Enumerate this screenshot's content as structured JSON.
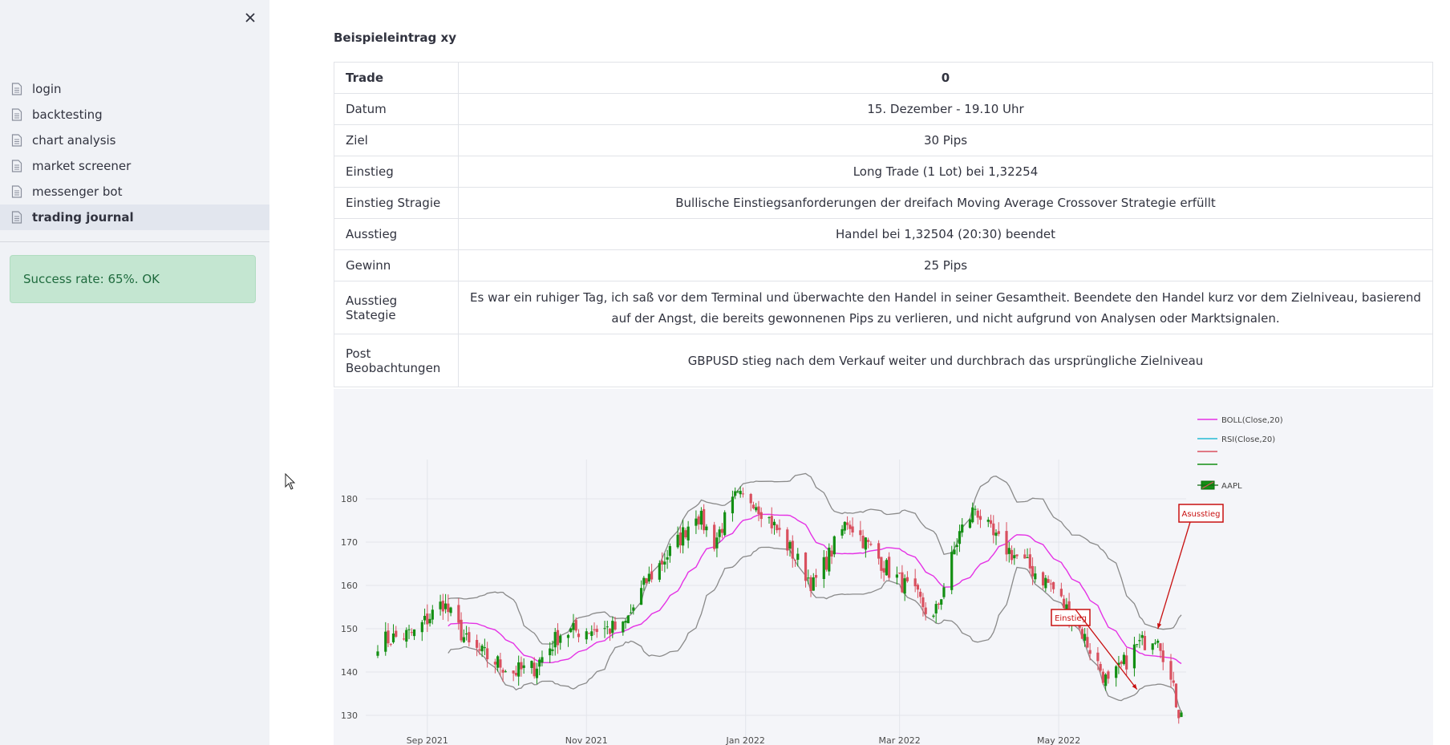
{
  "sidebar": {
    "items": [
      {
        "label": "login",
        "active": false
      },
      {
        "label": "backtesting",
        "active": false
      },
      {
        "label": "chart analysis",
        "active": false
      },
      {
        "label": "market screener",
        "active": false
      },
      {
        "label": "messenger bot",
        "active": false
      },
      {
        "label": "trading journal",
        "active": true
      }
    ],
    "success_message": "Success rate: 65%. OK"
  },
  "main": {
    "entry_title": "Beispieleintrag xy",
    "table": {
      "header": {
        "key": "Trade",
        "value": "0"
      },
      "rows": [
        {
          "key": "Datum",
          "value": "15. Dezember - 19.10 Uhr"
        },
        {
          "key": "Ziel",
          "value": "30 Pips"
        },
        {
          "key": "Einstieg",
          "value": "Long Trade (1 Lot) bei 1,32254"
        },
        {
          "key": "Einstieg Stragie",
          "value": "Bullische Einstiegsanforderungen der dreifach Moving Average Crossover Strategie erfüllt"
        },
        {
          "key": "Ausstieg",
          "value": "Handel bei 1,32504 (20:30) beendet"
        },
        {
          "key": "Gewinn",
          "value": "25 Pips"
        },
        {
          "key": "Ausstieg Stategie",
          "value": "Es war ein ruhiger Tag, ich saß vor dem Terminal und überwachte den Handel in seiner Gesamtheit. Beendete den Handel kurz vor dem Zielniveau, basierend auf der Angst, die bereits gewonnenen Pips zu verlieren, und nicht aufgrund von Analysen oder Marktsignalen."
        },
        {
          "key": "Post Beobachtungen",
          "value": "GBPUSD stieg nach dem Verkauf weiter und durchbrach das ursprüngliche Zielniveau"
        }
      ]
    }
  },
  "chart_data": {
    "type": "candlestick",
    "x_ticks": [
      "Sep 2021",
      "Nov 2021",
      "Jan 2022",
      "Mar 2022",
      "May 2022"
    ],
    "y_ticks": [
      130,
      140,
      150,
      160,
      170,
      180
    ],
    "ylim": [
      127,
      189
    ],
    "legend": [
      "BOLL(Close,20)",
      "RSI(Close,20)",
      "",
      "",
      "AAPL"
    ],
    "legend_placement": "top-right",
    "annotations": [
      {
        "text": "Asusstieg",
        "at_date": "2022-06-08",
        "at_price": 150
      },
      {
        "text": "Einstieg",
        "at_date": "2022-05-31",
        "at_price": 136
      }
    ],
    "colors": {
      "up": "#138f13",
      "down": "#d9505f",
      "ma": "#e532e5",
      "bands": "#8a8a8a",
      "rsi": "#26bcd4",
      "annotation": "#c81010"
    },
    "close_anchors": [
      {
        "date": "2021-08-13",
        "close": 147
      },
      {
        "date": "2021-08-27",
        "close": 149
      },
      {
        "date": "2021-09-07",
        "close": 156
      },
      {
        "date": "2021-09-17",
        "close": 146
      },
      {
        "date": "2021-10-04",
        "close": 140
      },
      {
        "date": "2021-10-12",
        "close": 141
      },
      {
        "date": "2021-10-22",
        "close": 149
      },
      {
        "date": "2021-11-03",
        "close": 150
      },
      {
        "date": "2021-11-15",
        "close": 150
      },
      {
        "date": "2021-11-24",
        "close": 161
      },
      {
        "date": "2021-12-06",
        "close": 170
      },
      {
        "date": "2021-12-13",
        "close": 177
      },
      {
        "date": "2021-12-20",
        "close": 170
      },
      {
        "date": "2021-12-28",
        "close": 180
      },
      {
        "date": "2022-01-04",
        "close": 180
      },
      {
        "date": "2022-01-14",
        "close": 172
      },
      {
        "date": "2022-01-27",
        "close": 160
      },
      {
        "date": "2022-02-09",
        "close": 175
      },
      {
        "date": "2022-02-24",
        "close": 164
      },
      {
        "date": "2022-03-08",
        "close": 157
      },
      {
        "date": "2022-03-14",
        "close": 152
      },
      {
        "date": "2022-03-24",
        "close": 172
      },
      {
        "date": "2022-03-30",
        "close": 178
      },
      {
        "date": "2022-04-06",
        "close": 171
      },
      {
        "date": "2022-04-18",
        "close": 165
      },
      {
        "date": "2022-04-28",
        "close": 160
      },
      {
        "date": "2022-05-10",
        "close": 149
      },
      {
        "date": "2022-05-20",
        "close": 137
      },
      {
        "date": "2022-05-31",
        "close": 146
      },
      {
        "date": "2022-06-08",
        "close": 149
      },
      {
        "date": "2022-06-16",
        "close": 131
      },
      {
        "date": "2022-06-17",
        "close": 132
      }
    ]
  }
}
